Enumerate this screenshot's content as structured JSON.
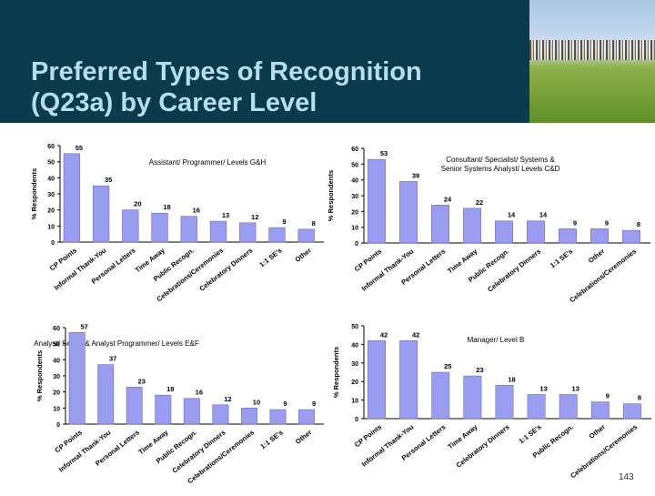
{
  "title_line1": "Preferred Types of Recognition",
  "title_line2": "(Q23a) by Career Level",
  "page_number": "143",
  "colors": {
    "bar": "#9a9cf0",
    "bar_stroke": "#6a6cc8",
    "header": "#0a3a4c",
    "title": "#b8dcf0"
  },
  "chart_data": [
    {
      "type": "bar",
      "title": "Assistant/ Programmer/ Levels G&H",
      "ylabel": "% Respondents",
      "ylim": [
        0,
        60
      ],
      "yticks": [
        0,
        10,
        20,
        30,
        40,
        50,
        60
      ],
      "categories": [
        "CP Points",
        "Informal Thank-You",
        "Personal Letters",
        "Time Away",
        "Public Recogn.",
        "Celebrations/Ceremonies",
        "Celebratory Dinners",
        "1:1 SE's",
        "Other"
      ],
      "values": [
        55,
        35,
        20,
        18,
        16,
        13,
        12,
        9,
        8
      ]
    },
    {
      "type": "bar",
      "title": "Consultant/ Specialist/ Systems & Senior Systems Analyst/ Levels C&D",
      "ylabel": "% Respondents",
      "ylim": [
        0,
        60
      ],
      "yticks": [
        0,
        10,
        20,
        30,
        40,
        50,
        60
      ],
      "categories": [
        "CP Points",
        "Informal Thank-You",
        "Personal Letters",
        "Time Away",
        "Public Recogn.",
        "Celebratory Dinners",
        "1:1 SE's",
        "Other",
        "Celebrations/Ceremonies"
      ],
      "values": [
        53,
        39,
        24,
        22,
        14,
        14,
        9,
        9,
        8
      ]
    },
    {
      "type": "bar",
      "title": "Analyst/ Senior & Analyst Programmer/ Levels E&F",
      "ylabel": "% Respondents",
      "ylim": [
        0,
        60
      ],
      "yticks": [
        0,
        10,
        20,
        30,
        40,
        50,
        60
      ],
      "categories": [
        "CP Points",
        "Informal Thank-You",
        "Personal Letters",
        "Time Away",
        "Public Recogn.",
        "Celebratory Dinners",
        "Celebrations/Ceremonies",
        "1:1 SE's",
        "Other"
      ],
      "values": [
        57,
        37,
        23,
        18,
        16,
        12,
        10,
        9,
        9
      ]
    },
    {
      "type": "bar",
      "title": "Manager/ Level B",
      "ylabel": "% Respondents",
      "ylim": [
        0,
        50
      ],
      "yticks": [
        0,
        10,
        20,
        30,
        40,
        50
      ],
      "categories": [
        "CP Points",
        "Informal Thank-You",
        "Personal Letters",
        "Time Away",
        "Celebratory Dinners",
        "1:1 SE's",
        "Public Recogn.",
        "Other",
        "Celebrations/Ceremonies"
      ],
      "values": [
        42,
        42,
        25,
        23,
        18,
        13,
        13,
        9,
        8
      ]
    }
  ]
}
